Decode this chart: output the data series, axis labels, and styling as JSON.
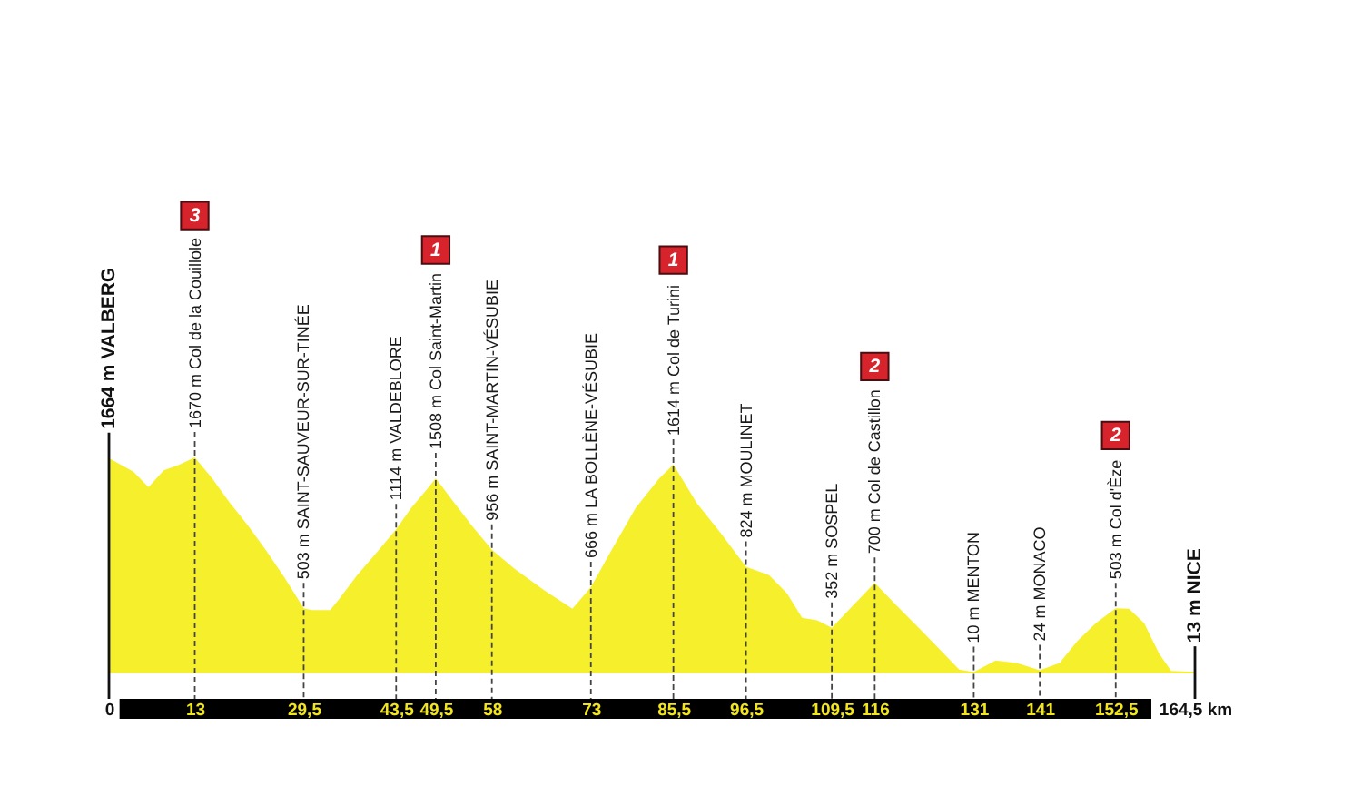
{
  "chart_data": {
    "type": "area",
    "x": [
      0,
      3.7,
      6.0,
      8.3,
      10.5,
      13,
      15.6,
      18.3,
      21.1,
      23.8,
      26.6,
      29.5,
      30.7,
      33.5,
      34.8,
      37.6,
      40.3,
      43.5,
      45.8,
      48.1,
      49.5,
      52.3,
      55.0,
      58,
      61.4,
      66.0,
      70.2,
      73,
      76.1,
      79.8,
      83.4,
      85.5,
      89.0,
      92.6,
      96.5,
      100.0,
      102.7,
      105.0,
      107.3,
      109.5,
      112.8,
      116,
      119.2,
      122.9,
      126.5,
      128.8,
      131,
      134.3,
      137.5,
      141,
      144.0,
      146.7,
      149.5,
      152.5,
      154.5,
      156.8,
      159.1,
      160.9,
      164.5
    ],
    "series": [
      {
        "color": "#f6f02c",
        "values": [
          1664,
          1560,
          1440,
          1570,
          1610,
          1670,
          1510,
          1320,
          1140,
          950,
          740,
          503,
          490,
          490,
          570,
          760,
          920,
          1114,
          1280,
          1420,
          1508,
          1320,
          1140,
          956,
          810,
          640,
          500,
          666,
          950,
          1280,
          1510,
          1614,
          1320,
          1090,
          824,
          760,
          620,
          430,
          410,
          352,
          530,
          700,
          530,
          340,
          150,
          30,
          10,
          100,
          80,
          24,
          80,
          250,
          390,
          503,
          500,
          390,
          150,
          20,
          13
        ],
        "value_labels": [
          "1664 m VALBERG",
          null,
          null,
          null,
          null,
          "1670 m Col de la Couillole",
          null,
          null,
          null,
          null,
          null,
          "503 m SAINT-SAUVEUR-SUR-TINÉE",
          null,
          null,
          null,
          null,
          null,
          "1114 m VALDEBLORE",
          null,
          null,
          "1508 m Col Saint-Martin",
          null,
          null,
          "956 m SAINT-MARTIN-VÉSUBIE",
          null,
          null,
          null,
          "666 m LA BOLLÈNE-VÉSUBIE",
          null,
          null,
          null,
          "1614 m Col de Turini",
          null,
          null,
          "824 m MOULINET",
          null,
          null,
          null,
          null,
          "352 m SOSPEL",
          null,
          "700 m Col de Castillon",
          null,
          null,
          null,
          null,
          "10 m MENTON",
          null,
          null,
          "24 m MONACO",
          null,
          null,
          null,
          "503 m Col d'Èze",
          null,
          null,
          null,
          null,
          "13 m NICE"
        ]
      }
    ],
    "xlim": [
      0,
      164.5
    ],
    "xticks": [
      0,
      13,
      {
        "value": 29.5,
        "label": "29,5"
      },
      {
        "value": 43.5,
        "label": "43,5"
      },
      {
        "value": 49.5,
        "label": "49,5"
      },
      58,
      73,
      {
        "value": 85.5,
        "label": "85,5"
      },
      {
        "value": 96.5,
        "label": "96,5"
      },
      {
        "value": 109.5,
        "label": "109,5"
      },
      116,
      131,
      141,
      {
        "value": 152.5,
        "label": "152,5"
      },
      {
        "value": 164.5,
        "label": "164,5 km"
      }
    ],
    "tick_labels": "x",
    "grid": "x",
    "annotations": [
      "3",
      "1",
      "1",
      "2",
      "2"
    ]
  }
}
